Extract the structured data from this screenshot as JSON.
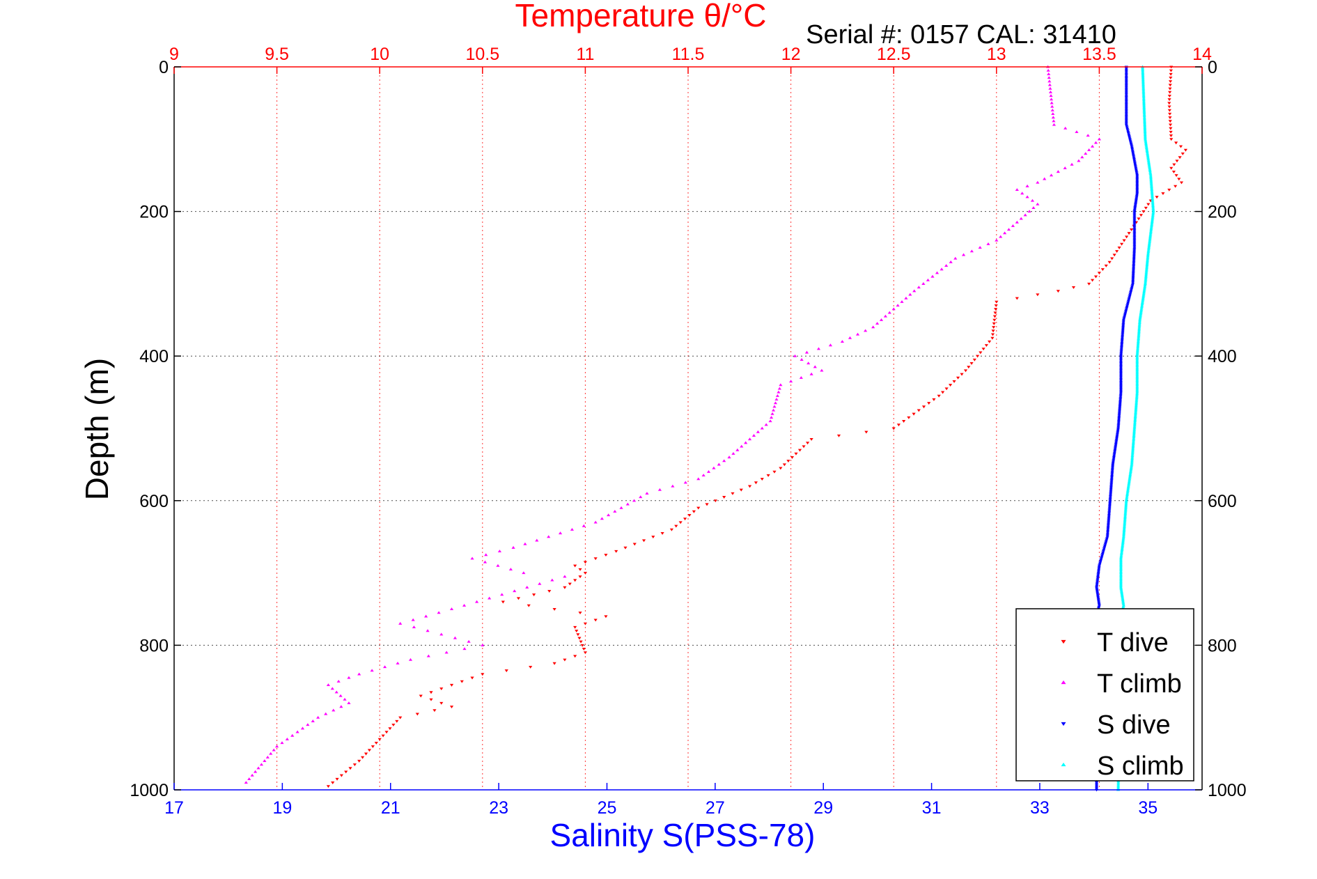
{
  "chart_data": {
    "type": "scatter",
    "title": "Temperature θ/°C",
    "subtitle": "Serial #: 0157  CAL: 31410",
    "xlabel": "Salinity S(PSS-78)",
    "ylabel": "Depth (m)",
    "temperature_axis": {
      "range": [
        9,
        14
      ],
      "ticks": [
        "9",
        "9.5",
        "10",
        "10.5",
        "11",
        "11.5",
        "12",
        "12.5",
        "13",
        "13.5",
        "14"
      ],
      "color": "#ff0000"
    },
    "salinity_axis": {
      "range": [
        17,
        36
      ],
      "ticks": [
        "17",
        "19",
        "21",
        "23",
        "25",
        "27",
        "29",
        "31",
        "33",
        "35"
      ],
      "color": "#0000ff"
    },
    "depth_axis": {
      "range": [
        0,
        1000
      ],
      "ticks": [
        "0",
        "200",
        "400",
        "600",
        "800",
        "1000"
      ],
      "reversed": true
    },
    "grid": true,
    "legend_position": "bottom-right",
    "series": [
      {
        "name": "T dive",
        "axis": "temperature",
        "color": "#ff0000",
        "marker": "triangle-down",
        "points": [
          [
            13.85,
            0
          ],
          [
            13.84,
            50
          ],
          [
            13.85,
            100
          ],
          [
            13.92,
            115
          ],
          [
            13.85,
            140
          ],
          [
            13.9,
            160
          ],
          [
            13.75,
            185
          ],
          [
            13.68,
            215
          ],
          [
            13.55,
            270
          ],
          [
            13.45,
            300
          ],
          [
            13.3,
            310
          ],
          [
            13.0,
            325
          ],
          [
            12.98,
            375
          ],
          [
            12.85,
            420
          ],
          [
            12.72,
            455
          ],
          [
            12.5,
            500
          ],
          [
            12.1,
            515
          ],
          [
            11.95,
            555
          ],
          [
            11.8,
            580
          ],
          [
            11.55,
            610
          ],
          [
            11.42,
            640
          ],
          [
            11.15,
            670
          ],
          [
            10.95,
            690
          ],
          [
            11.0,
            700
          ],
          [
            10.9,
            720
          ],
          [
            10.6,
            740
          ],
          [
            11.1,
            760
          ],
          [
            10.95,
            775
          ],
          [
            11.0,
            810
          ],
          [
            10.85,
            825
          ],
          [
            10.5,
            840
          ],
          [
            10.35,
            855
          ],
          [
            10.2,
            870
          ],
          [
            10.35,
            885
          ],
          [
            10.1,
            900
          ],
          [
            10.0,
            930
          ],
          [
            9.9,
            960
          ],
          [
            9.75,
            995
          ]
        ]
      },
      {
        "name": "T climb",
        "axis": "temperature",
        "color": "#ff00ff",
        "marker": "triangle-up",
        "points": [
          [
            13.25,
            0
          ],
          [
            13.28,
            80
          ],
          [
            13.5,
            100
          ],
          [
            13.4,
            130
          ],
          [
            13.2,
            160
          ],
          [
            13.1,
            170
          ],
          [
            13.2,
            190
          ],
          [
            13.0,
            240
          ],
          [
            12.8,
            265
          ],
          [
            12.6,
            310
          ],
          [
            12.4,
            360
          ],
          [
            12.25,
            380
          ],
          [
            12.02,
            400
          ],
          [
            12.15,
            420
          ],
          [
            11.95,
            440
          ],
          [
            11.9,
            490
          ],
          [
            11.7,
            540
          ],
          [
            11.55,
            570
          ],
          [
            11.3,
            590
          ],
          [
            11.05,
            630
          ],
          [
            10.65,
            665
          ],
          [
            10.45,
            680
          ],
          [
            10.7,
            700
          ],
          [
            10.9,
            705
          ],
          [
            10.35,
            750
          ],
          [
            10.1,
            770
          ],
          [
            10.5,
            800
          ],
          [
            10.15,
            820
          ],
          [
            9.9,
            840
          ],
          [
            9.75,
            855
          ],
          [
            9.85,
            880
          ],
          [
            9.7,
            900
          ],
          [
            9.5,
            940
          ],
          [
            9.35,
            990
          ]
        ]
      },
      {
        "name": "S dive",
        "axis": "salinity",
        "color": "#0000ff",
        "marker": "triangle-down",
        "points": [
          [
            34.6,
            0
          ],
          [
            34.6,
            80
          ],
          [
            34.7,
            110
          ],
          [
            34.8,
            150
          ],
          [
            34.8,
            175
          ],
          [
            34.75,
            200
          ],
          [
            34.75,
            250
          ],
          [
            34.72,
            300
          ],
          [
            34.55,
            350
          ],
          [
            34.5,
            400
          ],
          [
            34.5,
            450
          ],
          [
            34.45,
            500
          ],
          [
            34.35,
            550
          ],
          [
            34.3,
            600
          ],
          [
            34.25,
            650
          ],
          [
            34.1,
            690
          ],
          [
            34.05,
            720
          ],
          [
            34.1,
            745
          ],
          [
            34.05,
            760
          ],
          [
            34.05,
            1000
          ]
        ]
      },
      {
        "name": "S climb",
        "axis": "salinity",
        "color": "#00ffff",
        "marker": "triangle-up",
        "points": [
          [
            34.9,
            0
          ],
          [
            34.95,
            100
          ],
          [
            35.05,
            150
          ],
          [
            35.1,
            200
          ],
          [
            35.0,
            260
          ],
          [
            34.95,
            300
          ],
          [
            34.85,
            350
          ],
          [
            34.8,
            400
          ],
          [
            34.8,
            450
          ],
          [
            34.75,
            500
          ],
          [
            34.7,
            550
          ],
          [
            34.6,
            600
          ],
          [
            34.55,
            650
          ],
          [
            34.5,
            680
          ],
          [
            34.5,
            720
          ],
          [
            34.55,
            745
          ],
          [
            34.5,
            760
          ],
          [
            34.45,
            1000
          ]
        ]
      }
    ],
    "legend": [
      "T dive",
      "T climb",
      "S dive",
      "S climb"
    ]
  },
  "colors": {
    "grid_red": "#ff0000",
    "grid_black": "#000000",
    "axis_blue": "#0000ff"
  }
}
